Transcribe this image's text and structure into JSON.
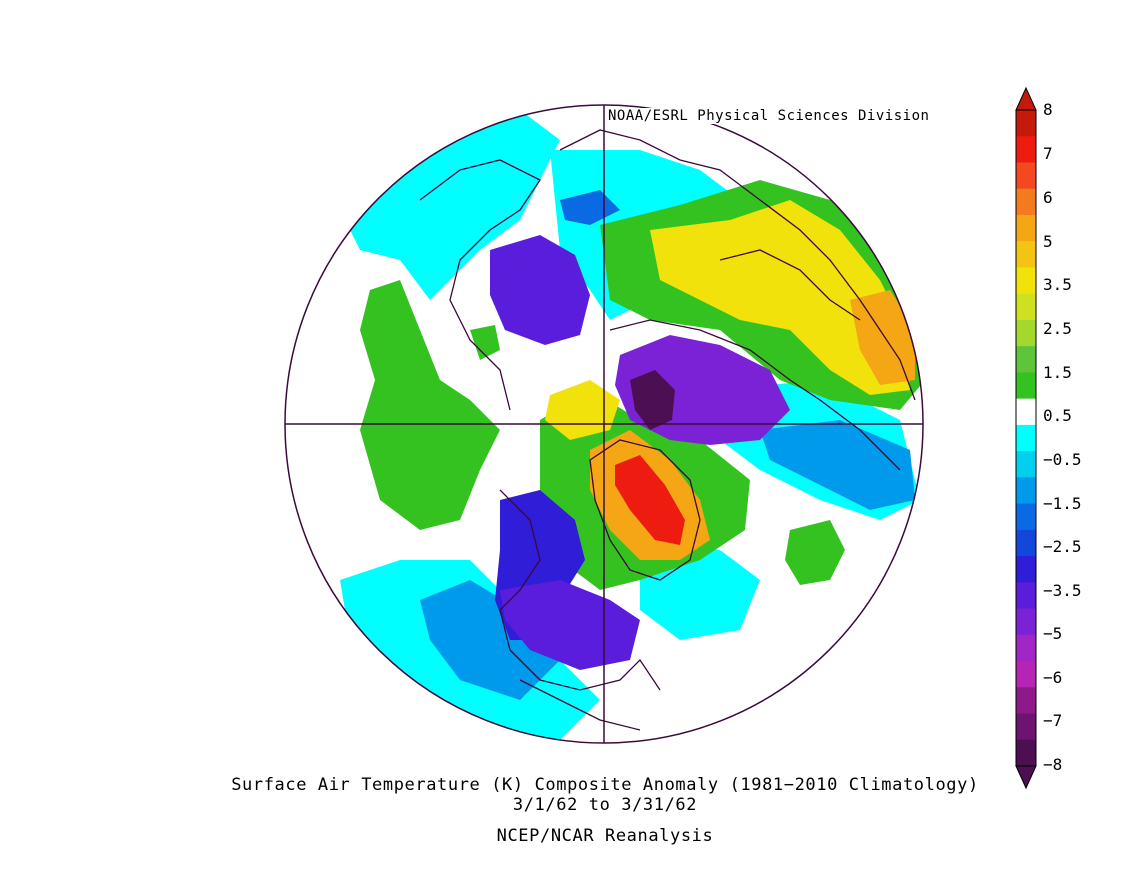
{
  "map": {
    "credit": "NOAA/ESRL Physical Sciences Division",
    "title": "Surface Air Temperature (K) Composite Anomaly (1981−2010 Climatology)",
    "date_range": "3/1/62   to 3/31/62",
    "source": "NCEP/NCAR Reanalysis",
    "projection": "north-polar-stereographic",
    "variable": "Surface Air Temperature anomaly",
    "units": "K"
  },
  "colorbar": {
    "labels": [
      "8",
      "7",
      "6",
      "5",
      "3.5",
      "2.5",
      "1.5",
      "0.5",
      "−0.5",
      "−1.5",
      "−2.5",
      "−3.5",
      "−5",
      "−6",
      "−7",
      "−8"
    ],
    "colors": [
      "#c41a0c",
      "#ee1b10",
      "#f4491e",
      "#f47a1f",
      "#f5a615",
      "#f4c413",
      "#f2e20c",
      "#cfe021",
      "#a4d82c",
      "#5ec53b",
      "#33c21f",
      "#ffffff",
      "#00ffff",
      "#00cfed",
      "#009aec",
      "#0a6ae4",
      "#1347db",
      "#2f1dd8",
      "#5a1ddb",
      "#7c22d6",
      "#a226c7",
      "#b624b6",
      "#8e1a8a",
      "#6d1470",
      "#4c0f52"
    ]
  },
  "regions": {
    "arctic_siberia_cold": "#7c22d6",
    "siberia_cold_core": "#4c0f52",
    "greenland_warm": "#f5a615",
    "greenland_warm_core": "#ee1b10",
    "europe_warm": "#f4c413",
    "north_america_cold": "#2f1dd8",
    "pacific_neutral": "#33c21f",
    "cool_ocean": "#00cfed"
  }
}
